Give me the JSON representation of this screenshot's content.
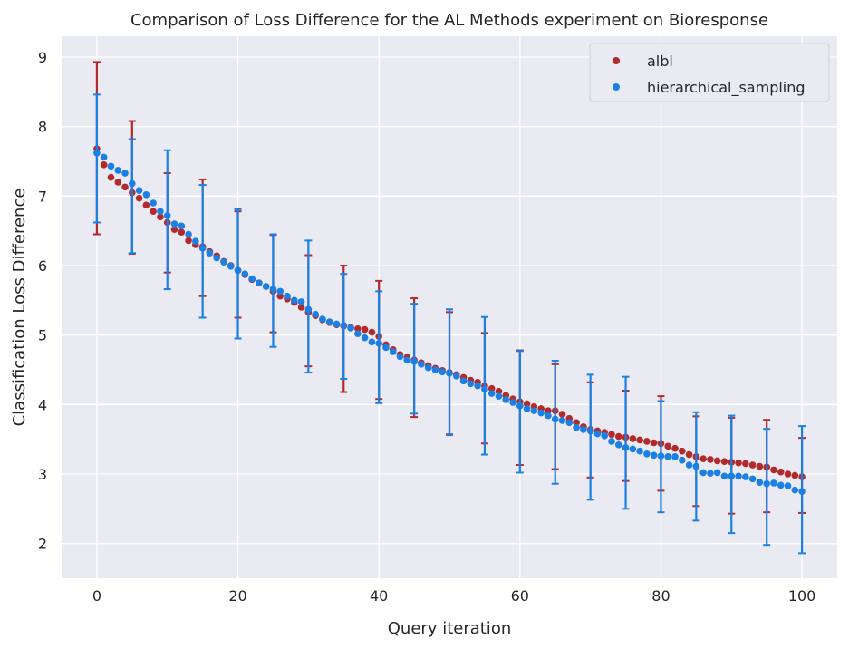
{
  "chart_data": {
    "type": "scatter",
    "title": "Comparison of Loss Difference for the AL Methods experiment on Bioresponse",
    "xlabel": "Query iteration",
    "ylabel": "Classification Loss Difference",
    "xlim": [
      -5,
      105
    ],
    "ylim": [
      1.5,
      9.3
    ],
    "x_ticks": [
      0,
      20,
      40,
      60,
      80,
      100
    ],
    "y_ticks": [
      2,
      3,
      4,
      5,
      6,
      7,
      8,
      9
    ],
    "grid": true,
    "legend_position": "top-right",
    "x": [
      0,
      1,
      2,
      3,
      4,
      5,
      6,
      7,
      8,
      9,
      10,
      11,
      12,
      13,
      14,
      15,
      16,
      17,
      18,
      19,
      20,
      21,
      22,
      23,
      24,
      25,
      26,
      27,
      28,
      29,
      30,
      31,
      32,
      33,
      34,
      35,
      36,
      37,
      38,
      39,
      40,
      41,
      42,
      43,
      44,
      45,
      46,
      47,
      48,
      49,
      50,
      51,
      52,
      53,
      54,
      55,
      56,
      57,
      58,
      59,
      60,
      61,
      62,
      63,
      64,
      65,
      66,
      67,
      68,
      69,
      70,
      71,
      72,
      73,
      74,
      75,
      76,
      77,
      78,
      79,
      80,
      81,
      82,
      83,
      84,
      85,
      86,
      87,
      88,
      89,
      90,
      91,
      92,
      93,
      94,
      95,
      96,
      97,
      98,
      99,
      100
    ],
    "series": [
      {
        "name": "albl",
        "color": "#b22a2a",
        "values": [
          7.68,
          7.45,
          7.27,
          7.2,
          7.13,
          7.05,
          6.97,
          6.87,
          6.78,
          6.7,
          6.62,
          6.52,
          6.48,
          6.36,
          6.3,
          6.27,
          6.2,
          6.14,
          6.06,
          6.0,
          5.93,
          5.87,
          5.8,
          5.75,
          5.7,
          5.63,
          5.56,
          5.52,
          5.47,
          5.4,
          5.33,
          5.28,
          5.22,
          5.18,
          5.15,
          5.13,
          5.11,
          5.09,
          5.08,
          5.04,
          4.98,
          4.86,
          4.79,
          4.72,
          4.68,
          4.64,
          4.6,
          4.56,
          4.52,
          4.49,
          4.46,
          4.43,
          4.39,
          4.35,
          4.32,
          4.27,
          4.23,
          4.19,
          4.13,
          4.08,
          4.04,
          4.01,
          3.97,
          3.94,
          3.91,
          3.91,
          3.86,
          3.8,
          3.74,
          3.68,
          3.64,
          3.62,
          3.6,
          3.57,
          3.54,
          3.53,
          3.51,
          3.49,
          3.47,
          3.45,
          3.44,
          3.4,
          3.37,
          3.33,
          3.28,
          3.25,
          3.22,
          3.21,
          3.19,
          3.18,
          3.17,
          3.16,
          3.15,
          3.13,
          3.11,
          3.1,
          3.06,
          3.03,
          3.0,
          2.98,
          2.96
        ],
        "errorbars": {
          "x": [
            0,
            5,
            10,
            15,
            20,
            25,
            30,
            35,
            40,
            45,
            50,
            55,
            60,
            65,
            70,
            75,
            80,
            85,
            90,
            95,
            100
          ],
          "lower": [
            6.45,
            6.17,
            5.9,
            5.56,
            5.25,
            5.04,
            4.55,
            4.18,
            4.08,
            3.82,
            3.57,
            3.44,
            3.13,
            3.07,
            2.95,
            2.9,
            2.76,
            2.54,
            2.43,
            2.45,
            2.44
          ],
          "upper": [
            8.93,
            8.08,
            7.33,
            7.24,
            6.78,
            6.44,
            6.15,
            6.0,
            5.78,
            5.53,
            5.33,
            5.03,
            4.78,
            4.58,
            4.32,
            4.2,
            4.12,
            3.83,
            3.81,
            3.78,
            3.52
          ]
        }
      },
      {
        "name": "hierarchical_sampling",
        "color": "#1a80e5",
        "values": [
          7.62,
          7.56,
          7.43,
          7.37,
          7.33,
          7.18,
          7.08,
          7.02,
          6.9,
          6.78,
          6.72,
          6.6,
          6.57,
          6.45,
          6.35,
          6.25,
          6.18,
          6.11,
          6.05,
          5.99,
          5.93,
          5.88,
          5.81,
          5.75,
          5.7,
          5.66,
          5.63,
          5.56,
          5.5,
          5.48,
          5.37,
          5.3,
          5.23,
          5.19,
          5.16,
          5.14,
          5.1,
          5.02,
          4.96,
          4.9,
          4.88,
          4.82,
          4.76,
          4.69,
          4.64,
          4.62,
          4.58,
          4.53,
          4.5,
          4.47,
          4.45,
          4.41,
          4.34,
          4.3,
          4.27,
          4.22,
          4.16,
          4.12,
          4.07,
          4.03,
          3.98,
          3.94,
          3.91,
          3.88,
          3.84,
          3.79,
          3.77,
          3.74,
          3.67,
          3.64,
          3.62,
          3.58,
          3.55,
          3.47,
          3.42,
          3.38,
          3.36,
          3.33,
          3.29,
          3.27,
          3.26,
          3.25,
          3.25,
          3.2,
          3.13,
          3.11,
          3.02,
          3.01,
          3.02,
          2.97,
          2.97,
          2.97,
          2.96,
          2.93,
          2.88,
          2.86,
          2.87,
          2.84,
          2.83,
          2.77,
          2.75
        ],
        "errorbars": {
          "x": [
            0,
            5,
            10,
            15,
            20,
            25,
            30,
            35,
            40,
            45,
            50,
            55,
            60,
            65,
            70,
            75,
            80,
            85,
            90,
            95,
            100
          ],
          "lower": [
            6.62,
            6.18,
            5.66,
            5.25,
            4.95,
            4.83,
            4.46,
            4.37,
            4.02,
            3.87,
            3.56,
            3.28,
            3.02,
            2.86,
            2.63,
            2.5,
            2.45,
            2.33,
            2.15,
            1.98,
            1.86
          ],
          "upper": [
            8.46,
            7.82,
            7.66,
            7.16,
            6.81,
            6.45,
            6.36,
            5.88,
            5.63,
            5.45,
            5.37,
            5.26,
            4.77,
            4.63,
            4.43,
            4.4,
            4.05,
            3.89,
            3.84,
            3.65,
            3.69
          ]
        }
      }
    ]
  }
}
